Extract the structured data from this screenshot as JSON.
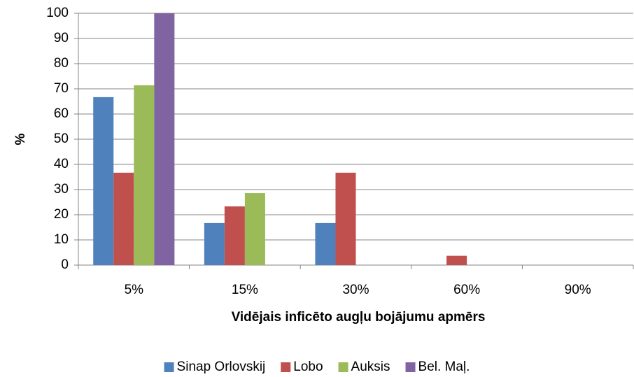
{
  "chart_data": {
    "type": "bar",
    "categories": [
      "5%",
      "15%",
      "30%",
      "60%",
      "90%"
    ],
    "series": [
      {
        "name": "Sinap Orlovskij",
        "color": "#4f81bd",
        "values": [
          66.7,
          16.7,
          16.7,
          0,
          0
        ]
      },
      {
        "name": "Lobo",
        "color": "#c0504d",
        "values": [
          36.7,
          23.3,
          36.7,
          3.7,
          0
        ]
      },
      {
        "name": "Auksis",
        "color": "#9bbb59",
        "values": [
          71.4,
          28.6,
          0,
          0,
          0
        ]
      },
      {
        "name": "Bel. Maļ.",
        "color": "#8064a2",
        "values": [
          100,
          0,
          0,
          0,
          0
        ]
      }
    ],
    "x_label": "Vidējais inficēto augļu bojājumu apmērs",
    "y_label": "%",
    "ylim": [
      0,
      100
    ],
    "yticks": [
      0,
      10,
      20,
      30,
      40,
      50,
      60,
      70,
      80,
      90,
      100
    ],
    "grid": true,
    "legend": "bottom"
  }
}
